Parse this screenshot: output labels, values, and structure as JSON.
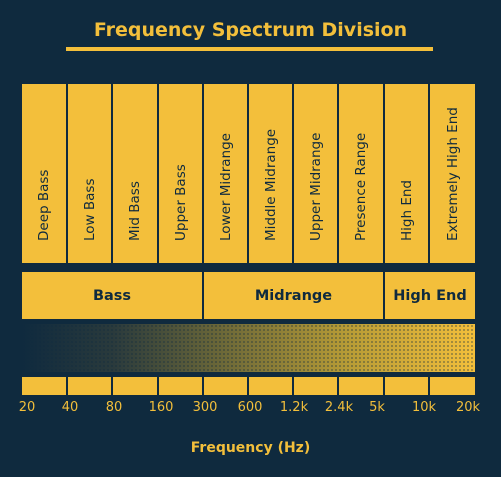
{
  "title": "Frequency Spectrum Division",
  "bands": [
    "Deep Bass",
    "Low Bass",
    "Mid Bass",
    "Upper Bass",
    "Lower Midrange",
    "Middle Midrange",
    "Upper Midrange",
    "Presence Range",
    "High End",
    "Extremely High End"
  ],
  "groups": [
    "Bass",
    "Midrange",
    "High End"
  ],
  "ticks": [
    "20",
    "40",
    "80",
    "160",
    "300",
    "600",
    "1.2k",
    "2.4k",
    "5k",
    "10k",
    "20k"
  ],
  "axis_label": "Frequency (Hz)",
  "colors": {
    "background": "#0f2a3e",
    "accent": "#f3bf3b"
  }
}
